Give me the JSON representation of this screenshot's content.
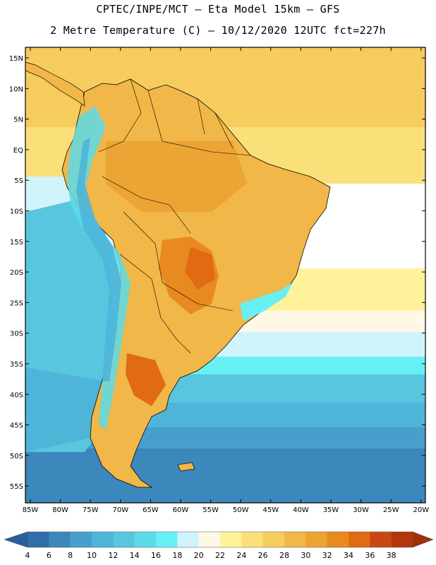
{
  "header": {
    "line1": "CPTEC/INPE/MCT –  Eta Model 15km – GFS",
    "line2": "2 Metre Temperature (C) – 10/12/2020 12UTC fct=227h"
  },
  "map": {
    "lat_labels": [
      "15N",
      "10N",
      "5N",
      "EQ",
      "5S",
      "10S",
      "15S",
      "20S",
      "25S",
      "30S",
      "35S",
      "40S",
      "45S",
      "50S",
      "55S"
    ],
    "lon_labels": [
      "85W",
      "80W",
      "75W",
      "70W",
      "65W",
      "60W",
      "55W",
      "50W",
      "45W",
      "40W",
      "35W",
      "30W",
      "25W",
      "20W"
    ],
    "lat_range": [
      15,
      -57
    ],
    "lon_range": [
      -85,
      -20
    ]
  },
  "colorbar": {
    "ticks": [
      "4",
      "6",
      "8",
      "10",
      "12",
      "14",
      "16",
      "18",
      "20",
      "22",
      "24",
      "26",
      "28",
      "30",
      "32",
      "34",
      "36",
      "38"
    ],
    "colors": [
      "#2f6ea8",
      "#3c87bb",
      "#47a0cb",
      "#4fb5d8",
      "#58c6df",
      "#5ddbe8",
      "#67f0f4",
      "#cff4fb",
      "#fff8e6",
      "#fff29a",
      "#fbe07a",
      "#f6cc5f",
      "#f1b748",
      "#eca434",
      "#e98a20",
      "#e06b12",
      "#c94710",
      "#b3360c"
    ],
    "low_color": "#2a5e9c",
    "high_color": "#a32f0a"
  }
}
